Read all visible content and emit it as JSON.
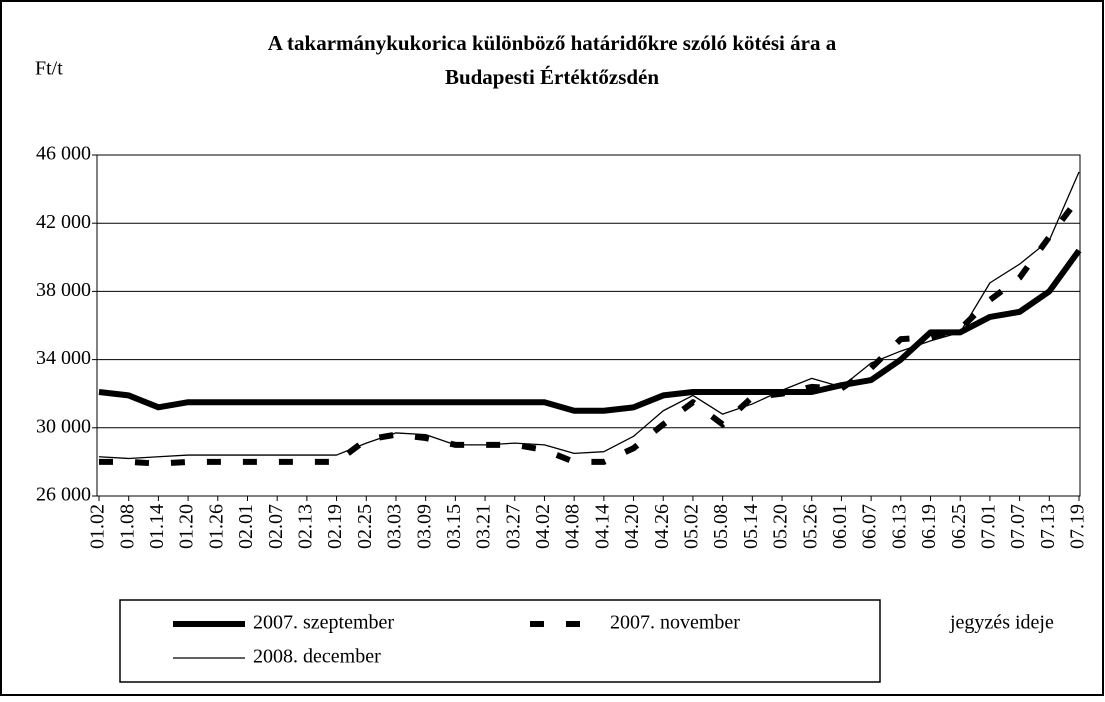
{
  "chart_data": {
    "type": "line",
    "title": [
      "A takarmánykukorica különböző határidőkre szóló kötési ára a",
      "Budapesti Értéktőzsdén"
    ],
    "y_label": "Ft/t",
    "x_label": "jegyzés ideje",
    "categories": [
      "01.02",
      "01.08",
      "01.14",
      "01.20",
      "01.26",
      "02.01",
      "02.07",
      "02.13",
      "02.19",
      "02.25",
      "03.03",
      "03.09",
      "03.15",
      "03.21",
      "03.27",
      "04.02",
      "04.08",
      "04.14",
      "04.20",
      "04.26",
      "05.02",
      "05.08",
      "05.14",
      "05.20",
      "05.26",
      "06.01",
      "06.07",
      "06.13",
      "06.19",
      "06.25",
      "07.01",
      "07.07",
      "07.13",
      "07.19"
    ],
    "series": [
      {
        "name": "2007. szeptember",
        "color": "#000000",
        "line_width": 6,
        "dash": false,
        "values": [
          32100,
          31900,
          31200,
          31500,
          31500,
          31500,
          31500,
          31500,
          31500,
          31500,
          31500,
          31500,
          31500,
          31500,
          31500,
          31500,
          31000,
          31000,
          31200,
          31900,
          32100,
          32100,
          32100,
          32100,
          32100,
          32500,
          32800,
          34000,
          35600,
          35600,
          36500,
          36800,
          38000,
          40400
        ]
      },
      {
        "name": "2007. november",
        "color": "#000000",
        "line_width": 6,
        "dash": true,
        "values": [
          28000,
          28000,
          27900,
          28000,
          28000,
          28000,
          28000,
          28000,
          28000,
          29300,
          29600,
          29400,
          29000,
          29000,
          29000,
          28700,
          28000,
          28000,
          28800,
          30200,
          31500,
          30200,
          31800,
          32000,
          32400,
          32300,
          33500,
          35200,
          35300,
          35800,
          37500,
          38800,
          41200,
          43500
        ]
      },
      {
        "name": "2008. december",
        "color": "#000000",
        "line_width": 1.3,
        "dash": false,
        "values": [
          28300,
          28200,
          28300,
          28400,
          28400,
          28400,
          28400,
          28400,
          28400,
          29100,
          29700,
          29600,
          29000,
          29000,
          29100,
          29000,
          28500,
          28600,
          29500,
          31000,
          31900,
          30800,
          31400,
          32200,
          32900,
          32400,
          33800,
          34500,
          35100,
          35600,
          38500,
          39600,
          41000,
          45000
        ]
      }
    ],
    "ylim": [
      26000,
      46000
    ],
    "yticks": [
      {
        "value": 26000,
        "label": "26 000"
      },
      {
        "value": 30000,
        "label": "30 000"
      },
      {
        "value": 34000,
        "label": "34 000"
      },
      {
        "value": 38000,
        "label": "38 000"
      },
      {
        "value": 42000,
        "label": "42 000"
      },
      {
        "value": 46000,
        "label": "46 000"
      }
    ],
    "grid": true,
    "legend": "bottom"
  }
}
